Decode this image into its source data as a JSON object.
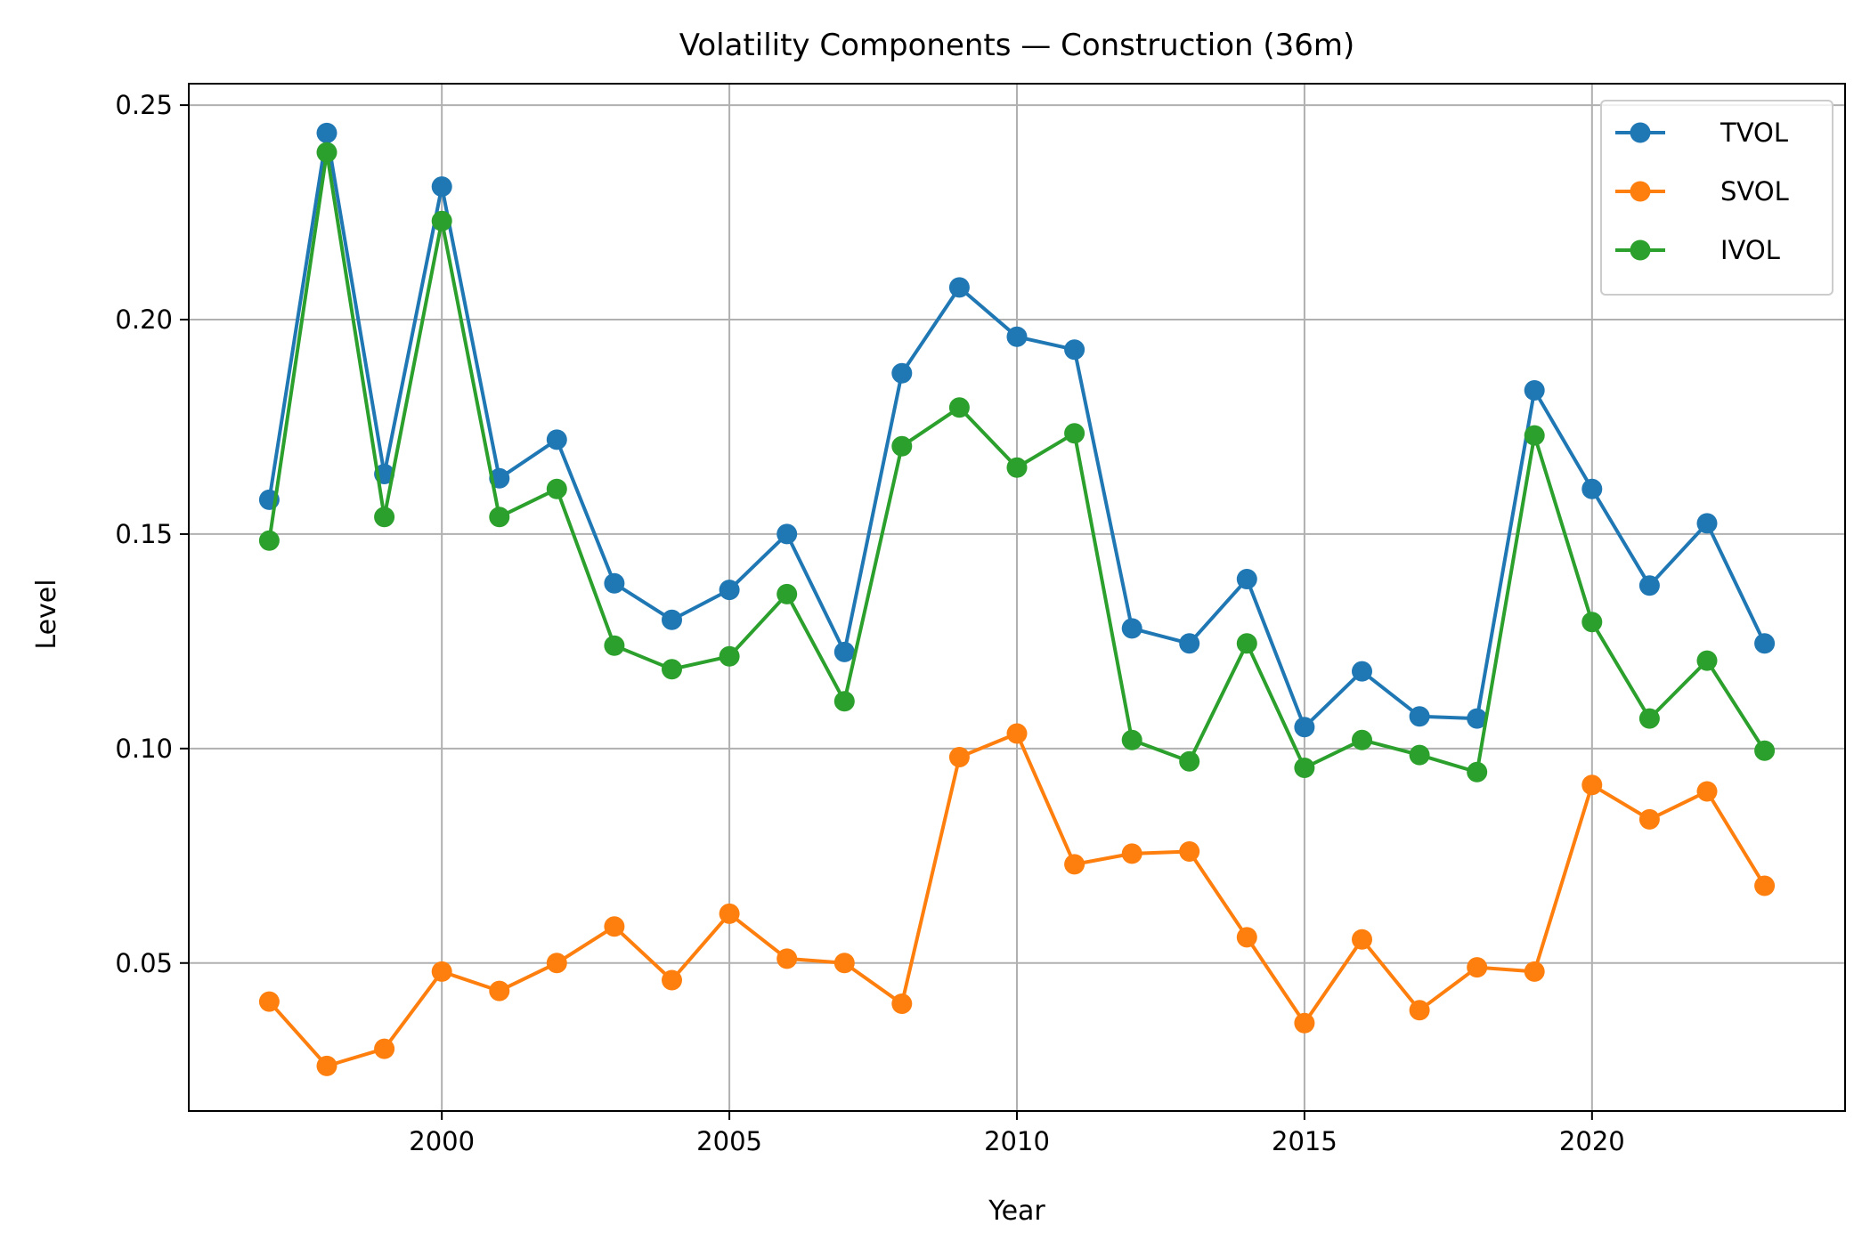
{
  "chart_data": {
    "type": "line",
    "title": "Volatility Components — Construction (36m)",
    "xlabel": "Year",
    "ylabel": "Level",
    "xlim": [
      1995.6,
      2024.4
    ],
    "ylim": [
      0.0155,
      0.255
    ],
    "x_ticks": [
      2000,
      2005,
      2010,
      2015,
      2020
    ],
    "x_tick_labels": [
      "2000",
      "2005",
      "2010",
      "2015",
      "2020"
    ],
    "y_ticks": [
      0.05,
      0.1,
      0.15,
      0.2,
      0.25
    ],
    "y_tick_labels": [
      "0.05",
      "0.10",
      "0.15",
      "0.20",
      "0.25"
    ],
    "grid": true,
    "legend_position": "top-right",
    "x": [
      1997,
      1998,
      1999,
      2000,
      2001,
      2002,
      2003,
      2004,
      2005,
      2006,
      2007,
      2008,
      2009,
      2010,
      2011,
      2012,
      2013,
      2014,
      2015,
      2016,
      2017,
      2018,
      2019,
      2020,
      2021,
      2022,
      2023
    ],
    "series": [
      {
        "name": "TVOL",
        "color": "#1f77b4",
        "values": [
          0.158,
          0.2435,
          0.164,
          0.231,
          0.163,
          0.172,
          0.1385,
          0.13,
          0.137,
          0.15,
          0.1225,
          0.1875,
          0.2075,
          0.196,
          0.193,
          0.128,
          0.1245,
          0.1395,
          0.105,
          0.118,
          0.1075,
          0.107,
          0.1835,
          0.1605,
          0.138,
          0.1525,
          0.1245
        ]
      },
      {
        "name": "SVOL",
        "color": "#ff7f0e",
        "values": [
          0.041,
          0.026,
          0.03,
          0.048,
          0.0435,
          0.05,
          0.0585,
          0.046,
          0.0615,
          0.051,
          0.05,
          0.0405,
          0.098,
          0.1035,
          0.073,
          0.0755,
          0.076,
          0.056,
          0.036,
          0.0555,
          0.039,
          0.049,
          0.048,
          0.0915,
          0.0835,
          0.09,
          0.068
        ]
      },
      {
        "name": "IVOL",
        "color": "#2ca02c",
        "values": [
          0.1485,
          0.239,
          0.154,
          0.223,
          0.154,
          0.1605,
          0.124,
          0.1185,
          0.1215,
          0.136,
          0.111,
          0.1705,
          0.1795,
          0.1655,
          0.1735,
          0.102,
          0.097,
          0.1245,
          0.0955,
          0.102,
          0.0985,
          0.0945,
          0.173,
          0.1295,
          0.107,
          0.1205,
          0.0995
        ]
      }
    ]
  }
}
